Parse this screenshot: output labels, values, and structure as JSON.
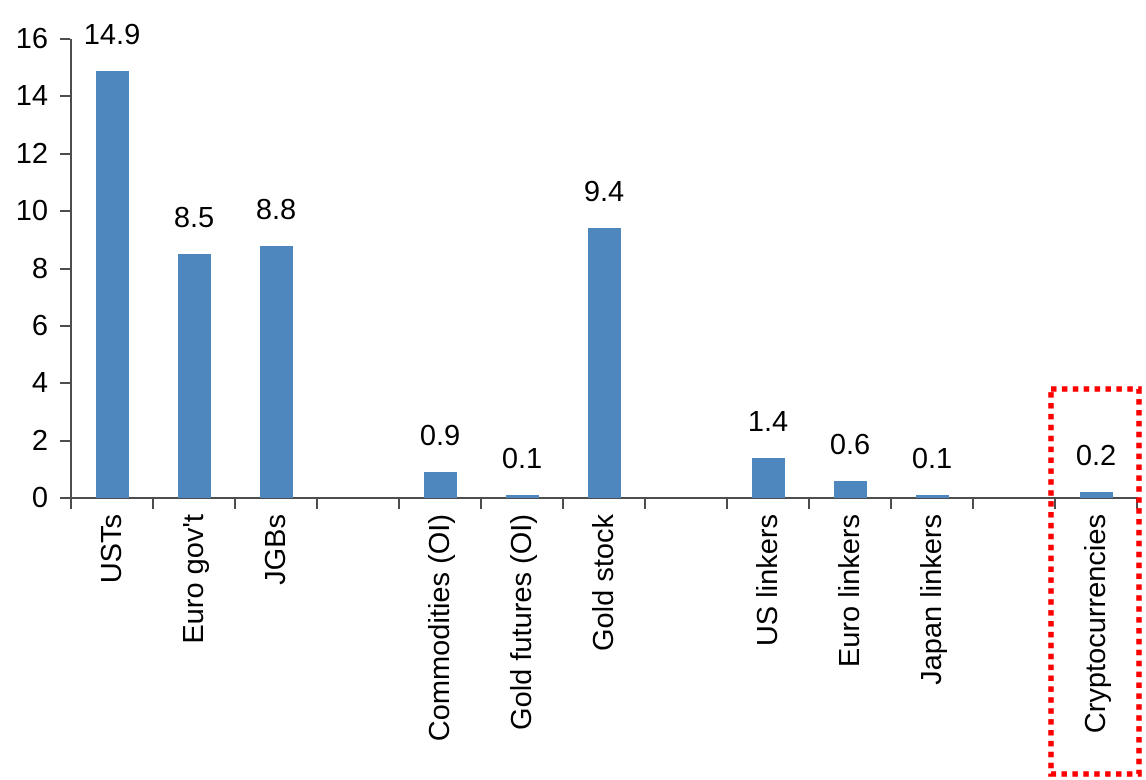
{
  "chart_data": {
    "type": "bar",
    "title": "",
    "xlabel": "",
    "ylabel": "",
    "categories": [
      "USTs",
      "Euro gov't",
      "JGBs",
      "Commodities (OI)",
      "Gold futures (OI)",
      "Gold stock",
      "US linkers",
      "Euro linkers",
      "Japan linkers",
      "Cryptocurrencies"
    ],
    "values": [
      14.9,
      8.5,
      8.8,
      0.9,
      0.1,
      9.4,
      1.4,
      0.6,
      0.1,
      0.2
    ],
    "value_labels": [
      "14.9",
      "8.5",
      "8.8",
      "0.9",
      "0.1",
      "9.4",
      "1.4",
      "0.6",
      "0.1",
      "0.2"
    ],
    "slot_indices": [
      0,
      1,
      2,
      4,
      5,
      6,
      8,
      9,
      10,
      12
    ],
    "n_slots": 13,
    "group_gaps_after": [
      "JGBs",
      "Gold stock",
      "Japan linkers"
    ],
    "ylim": [
      0,
      16
    ],
    "yticks": [
      0,
      2,
      4,
      6,
      8,
      10,
      12,
      14,
      16
    ],
    "ytick_labels": [
      "0",
      "2",
      "4",
      "6",
      "8",
      "10",
      "12",
      "14",
      "16"
    ],
    "grid": false,
    "legend": null,
    "category_label_rotation_deg": -90,
    "highlight": {
      "category": "Cryptocurrencies",
      "style": "red dotted rectangle outline around bar and label"
    },
    "colors": {
      "bar": "#4e87be",
      "axis": "#4d4d4d",
      "text": "#000000",
      "highlight": "#ff0000"
    }
  }
}
